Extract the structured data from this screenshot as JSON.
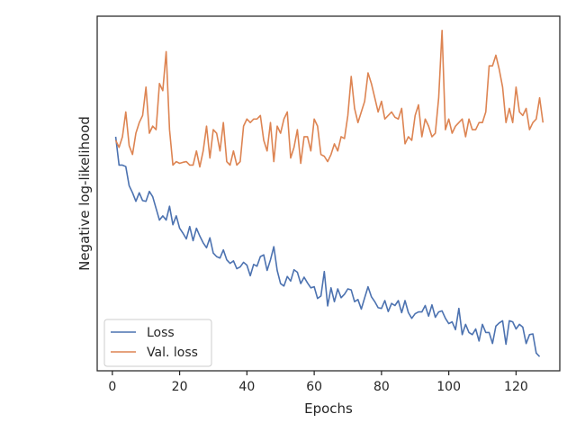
{
  "chart_data": {
    "type": "line",
    "title": "",
    "xlabel": "Epochs",
    "ylabel": "Negative log-likelihood",
    "xlim": [
      -4.5,
      133
    ],
    "ylim": [
      0,
      100
    ],
    "x_ticks": [
      "0",
      "20",
      "40",
      "60",
      "80",
      "100",
      "120"
    ],
    "y_ticks_shown": false,
    "grid": false,
    "legend_position": "lower-left",
    "series": [
      {
        "name": "Loss",
        "color": "#4c72b0",
        "x_start": 1,
        "values": [
          66,
          58,
          58,
          57.6,
          52.2,
          50.2,
          47.8,
          50.2,
          48,
          47.8,
          50.6,
          49.1,
          45.8,
          42.5,
          43.7,
          42.5,
          46.4,
          41.2,
          43.7,
          40.2,
          38.8,
          37.2,
          40.7,
          36.7,
          40.2,
          38,
          36.1,
          34.7,
          37.5,
          33.2,
          32.2,
          31.8,
          34.1,
          31.3,
          30.3,
          31,
          28.8,
          29.3,
          30.6,
          29.8,
          26.8,
          30,
          29.5,
          32.2,
          32.7,
          28.3,
          31.3,
          35,
          28.3,
          24.6,
          23.9,
          26.6,
          25.3,
          28.5,
          27.8,
          24.6,
          26.4,
          24.8,
          23.4,
          23.7,
          20.4,
          21.1,
          28,
          18.3,
          23.4,
          19.5,
          23.1,
          20.6,
          21.6,
          23.1,
          22.8,
          19.5,
          20.1,
          17.4,
          20.6,
          23.7,
          20.9,
          19.5,
          17.8,
          17.6,
          19.8,
          16.7,
          19,
          18.4,
          19.8,
          16.4,
          19.8,
          16.4,
          14.8,
          16.1,
          16.6,
          16.6,
          18.4,
          15.4,
          18.6,
          15.1,
          16.6,
          16.9,
          14.8,
          13.3,
          13.8,
          11.6,
          17.6,
          10.2,
          13.1,
          10.8,
          10.2,
          11.8,
          8.4,
          13.1,
          10.8,
          10.8,
          7.7,
          12.6,
          13.5,
          14.1,
          7.5,
          14.1,
          13.8,
          11.8,
          13.1,
          12.3,
          7.7,
          10.2,
          10.4,
          5,
          4
        ]
      },
      {
        "name": "Val. loss",
        "color": "#dd8452",
        "x_start": 1,
        "values": [
          65,
          63,
          66,
          73,
          63.5,
          61,
          67,
          70,
          72,
          80,
          67,
          69,
          68,
          81,
          79,
          90,
          68,
          58,
          59,
          58.5,
          58.8,
          59,
          58,
          58,
          62,
          57.5,
          62,
          69,
          60,
          68,
          67,
          62,
          70,
          59,
          58,
          62,
          58,
          59,
          69,
          71,
          70,
          71,
          71,
          72,
          65,
          62,
          70,
          59,
          69,
          67,
          71,
          73,
          60,
          63,
          68,
          58.5,
          66,
          66,
          62,
          71,
          69,
          61,
          60.5,
          59,
          61,
          64,
          62,
          66,
          65.5,
          72,
          83,
          74,
          70,
          73,
          76,
          84,
          81,
          77,
          73,
          76,
          71,
          72,
          73,
          71.5,
          71,
          74,
          64,
          66,
          65,
          72,
          75,
          66,
          71,
          69,
          66,
          67,
          77,
          96,
          68,
          71,
          67,
          69,
          70,
          71,
          66,
          71,
          68,
          68,
          70,
          70,
          73,
          86,
          86,
          89,
          85,
          80,
          70,
          74,
          70,
          80,
          73,
          72,
          74,
          68,
          70,
          71,
          77,
          70
        ]
      }
    ]
  }
}
